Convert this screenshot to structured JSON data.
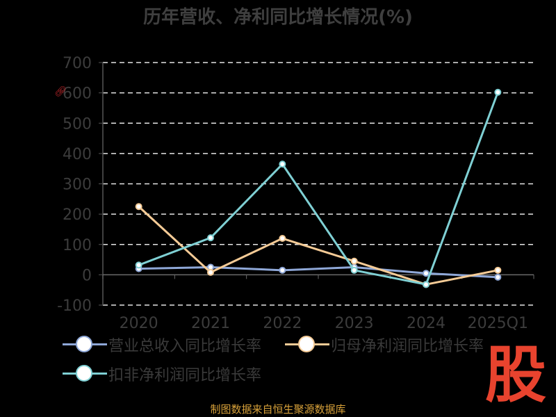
{
  "chart_data": {
    "type": "line",
    "title": "历年营收、净利同比增长情况(%)",
    "categories": [
      "2020",
      "2021",
      "2022",
      "2023",
      "2024",
      "2025Q1"
    ],
    "ylim": [
      -100,
      700
    ],
    "yticks": [
      -100,
      0,
      100,
      200,
      300,
      400,
      500,
      600,
      700
    ],
    "grid": true,
    "legend_position": "bottom",
    "series": [
      {
        "name": "营业总收入同比增长率",
        "color": "#8fa8d8",
        "values": [
          20,
          25,
          15,
          25,
          5,
          -8
        ]
      },
      {
        "name": "归母净利润同比增长率",
        "color": "#f5cb96",
        "values": [
          225,
          8,
          120,
          45,
          -32,
          15
        ]
      },
      {
        "name": "扣非净利润同比增长率",
        "color": "#7fd0d4",
        "values": [
          32,
          122,
          365,
          15,
          -32,
          602
        ]
      }
    ]
  },
  "footer": {
    "source": "制图数据来自恒生聚源数据库",
    "logo": "股"
  },
  "icons": {
    "unit_icon": "link-icon"
  }
}
